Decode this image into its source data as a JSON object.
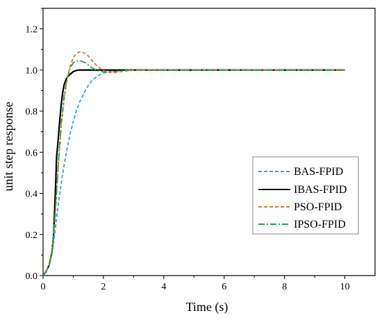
{
  "chart_data": {
    "type": "line",
    "title": "",
    "xlabel": "Time (s)",
    "ylabel": "unit step response",
    "xlim": [
      0,
      11
    ],
    "ylim": [
      0,
      1.3
    ],
    "x_ticks": [
      0,
      2,
      4,
      6,
      8,
      10
    ],
    "x_tick_labels": [
      "0",
      "2",
      "4",
      "6",
      "8",
      "10"
    ],
    "y_ticks": [
      0,
      0.2,
      0.4,
      0.6,
      0.8,
      1.0,
      1.2
    ],
    "y_tick_labels": [
      "0.0",
      "0.2",
      "0.4",
      "0.6",
      "0.8",
      "1.0",
      "1.2"
    ],
    "grid": false,
    "legend_position": "bottom-right",
    "series": [
      {
        "name": "BAS-FPID",
        "color": "#29a9e0",
        "dash": "dashed",
        "x": [
          0,
          0.1,
          0.2,
          0.3,
          0.4,
          0.5,
          0.6,
          0.7,
          0.8,
          0.9,
          1.0,
          1.1,
          1.2,
          1.3,
          1.4,
          1.5,
          1.6,
          1.7,
          1.8,
          2.0,
          2.2,
          2.4,
          2.6,
          2.8,
          3.0,
          3.5,
          4,
          5,
          6,
          7,
          8,
          9,
          10
        ],
        "y": [
          0,
          0.02,
          0.05,
          0.11,
          0.22,
          0.34,
          0.45,
          0.54,
          0.62,
          0.69,
          0.75,
          0.8,
          0.84,
          0.87,
          0.9,
          0.925,
          0.945,
          0.958,
          0.97,
          0.985,
          0.993,
          0.997,
          0.999,
          1.0,
          1.0,
          1.0,
          1.0,
          1.0,
          1.0,
          1.0,
          1.0,
          1.0,
          1.0
        ]
      },
      {
        "name": "IBAS-FPID",
        "color": "#000000",
        "dash": "solid",
        "x": [
          0,
          0.1,
          0.2,
          0.3,
          0.35,
          0.4,
          0.45,
          0.5,
          0.55,
          0.6,
          0.65,
          0.7,
          0.75,
          0.8,
          0.9,
          1.0,
          1.1,
          1.2,
          1.4,
          1.6,
          1.8,
          2.0,
          2.5,
          3,
          4,
          5,
          6,
          7,
          8,
          9,
          10
        ],
        "y": [
          0,
          0.02,
          0.05,
          0.12,
          0.2,
          0.38,
          0.58,
          0.66,
          0.75,
          0.83,
          0.89,
          0.93,
          0.95,
          0.965,
          0.98,
          0.992,
          0.998,
          1.0,
          1.0,
          1.0,
          1.0,
          1.0,
          1.0,
          1.0,
          1.0,
          1.0,
          1.0,
          1.0,
          1.0,
          1.0,
          1.0
        ]
      },
      {
        "name": "PSO-FPID",
        "color": "#e07b26",
        "dash": "dashed",
        "x": [
          0,
          0.1,
          0.2,
          0.3,
          0.4,
          0.5,
          0.6,
          0.7,
          0.8,
          0.9,
          1.0,
          1.1,
          1.2,
          1.3,
          1.4,
          1.5,
          1.6,
          1.7,
          1.8,
          2.0,
          2.2,
          2.4,
          2.6,
          2.8,
          3.0,
          3.5,
          4,
          5,
          6,
          7,
          8,
          9,
          10
        ],
        "y": [
          0,
          0.02,
          0.05,
          0.12,
          0.28,
          0.52,
          0.72,
          0.86,
          0.96,
          1.02,
          1.06,
          1.08,
          1.088,
          1.087,
          1.08,
          1.068,
          1.05,
          1.033,
          1.018,
          0.997,
          0.988,
          0.988,
          0.992,
          0.996,
          0.999,
          1.0,
          1.0,
          1.0,
          1.0,
          1.0,
          1.0,
          1.0,
          1.0
        ]
      },
      {
        "name": "IPSO-FPID",
        "color": "#2e9e5a",
        "dash": "dashdot",
        "x": [
          0,
          0.1,
          0.2,
          0.3,
          0.4,
          0.5,
          0.6,
          0.7,
          0.8,
          0.9,
          1.0,
          1.1,
          1.2,
          1.3,
          1.4,
          1.5,
          1.6,
          1.7,
          1.8,
          2.0,
          2.2,
          2.4,
          2.6,
          2.8,
          3.0,
          3.5,
          4,
          5,
          6,
          7,
          8,
          9,
          10
        ],
        "y": [
          0,
          0.02,
          0.05,
          0.12,
          0.3,
          0.54,
          0.74,
          0.88,
          0.96,
          1.01,
          1.035,
          1.044,
          1.045,
          1.042,
          1.035,
          1.025,
          1.013,
          1.004,
          0.997,
          0.99,
          0.99,
          0.993,
          0.997,
          0.999,
          1.0,
          1.0,
          1.0,
          1.0,
          1.0,
          1.0,
          1.0,
          1.0,
          1.0
        ]
      }
    ]
  }
}
